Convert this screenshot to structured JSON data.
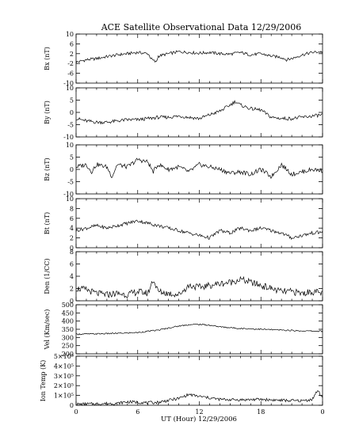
{
  "chart_data": {
    "type": "line",
    "title": "ACE Satellite Observational Data   12/29/2006",
    "xlabel": "UT (Hour)  12/29/2006",
    "x_ticks": [
      "0",
      "6",
      "12",
      "18",
      "0"
    ],
    "xlim": [
      0,
      24
    ],
    "panels": [
      {
        "name": "bx",
        "ylabel": "Bx (nT)",
        "ylim": [
          -10,
          10
        ],
        "yticks": [
          "10",
          "6",
          "2",
          "-2",
          "-6",
          "-10"
        ],
        "ytick_values": [
          10,
          6,
          2,
          -2,
          -6,
          -10
        ],
        "x": [
          0,
          1,
          2,
          3,
          4,
          5,
          6,
          7,
          7.4,
          7.8,
          8,
          9,
          10,
          11,
          12,
          13,
          14,
          15,
          16,
          17,
          18,
          19,
          20,
          20.5,
          21,
          22,
          23,
          24
        ],
        "y": [
          -1.5,
          -0.5,
          0,
          0.8,
          1.5,
          2,
          2.5,
          2,
          -0.5,
          -1.5,
          1,
          2,
          2.8,
          2.5,
          2.2,
          2.5,
          2,
          1.8,
          2.5,
          1.5,
          2,
          1,
          0.5,
          -0.5,
          0,
          1.5,
          2.5,
          2.8
        ]
      },
      {
        "name": "by",
        "ylabel": "By (nT)",
        "ylim": [
          -10,
          10
        ],
        "yticks": [
          "10",
          "5",
          "0",
          "-5",
          "-10"
        ],
        "ytick_values": [
          10,
          5,
          0,
          -5,
          -10
        ],
        "x": [
          0,
          1,
          2,
          3,
          4,
          5,
          6,
          7,
          8,
          9,
          10,
          11,
          12,
          13,
          14,
          15,
          15.5,
          16,
          17,
          18,
          19,
          20,
          21,
          22,
          23,
          24
        ],
        "y": [
          -2.5,
          -3.5,
          -4,
          -4,
          -3.5,
          -3,
          -3,
          -2.5,
          -2,
          -2,
          -1.5,
          -2,
          -2.5,
          -1,
          0.5,
          3,
          4.5,
          3,
          1.5,
          1,
          -2,
          -2.5,
          -2.5,
          -2,
          -1.5,
          -1
        ]
      },
      {
        "name": "bz",
        "ylabel": "Bz (nT)",
        "ylim": [
          -10,
          10
        ],
        "yticks": [
          "10",
          "5",
          "0",
          "-5",
          "-10"
        ],
        "ytick_values": [
          10,
          5,
          0,
          -5,
          -10
        ],
        "x": [
          0,
          1,
          1.5,
          2,
          3,
          3.5,
          4,
          5,
          6,
          7,
          7.5,
          8,
          9,
          10,
          11,
          12,
          13,
          14,
          15,
          16,
          17,
          18,
          19,
          20,
          21,
          22,
          23,
          24
        ],
        "y": [
          1,
          2,
          -1,
          2,
          1,
          -3,
          2,
          1,
          4,
          3,
          -1,
          2,
          0,
          1,
          -1,
          2,
          1,
          0,
          -1.5,
          -1,
          -2,
          0,
          -3,
          2,
          -2,
          -1,
          0,
          -0.5
        ]
      },
      {
        "name": "bt",
        "ylabel": "Bt (nT)",
        "ylim": [
          0,
          10
        ],
        "yticks": [
          "10",
          "8",
          "6",
          "4",
          "2",
          "0"
        ],
        "ytick_values": [
          10,
          8,
          6,
          4,
          2,
          0
        ],
        "x": [
          0,
          1,
          2,
          3,
          4,
          5,
          6,
          7,
          8,
          9,
          10,
          11,
          12,
          13,
          14,
          15,
          16,
          17,
          18,
          19,
          20,
          21,
          22,
          23,
          24
        ],
        "y": [
          3.5,
          4,
          4.5,
          4,
          4.5,
          5,
          5.5,
          5,
          4.5,
          4,
          3.5,
          3,
          2.5,
          2,
          3.5,
          3,
          4,
          3.5,
          4,
          3.5,
          3,
          2,
          2.5,
          3,
          3.2
        ]
      },
      {
        "name": "den",
        "ylabel": "Den (1/CC)",
        "ylim": [
          0,
          8
        ],
        "yticks": [
          "8",
          "6",
          "4",
          "2",
          "0"
        ],
        "ytick_values": [
          8,
          6,
          4,
          2,
          0
        ],
        "x": [
          0,
          1,
          2,
          3,
          4,
          5,
          6,
          7,
          7.5,
          8,
          9,
          10,
          11,
          12,
          13,
          14,
          15,
          16,
          17,
          18,
          19,
          20,
          21,
          22,
          23,
          24
        ],
        "y": [
          2,
          1.8,
          1.2,
          1,
          1.2,
          1,
          1.5,
          1.2,
          3.5,
          1.5,
          1.2,
          1,
          2.5,
          2.2,
          2.5,
          2.8,
          3,
          3.5,
          3,
          2.5,
          2,
          1.5,
          1.5,
          1.2,
          1.5,
          1.2
        ]
      },
      {
        "name": "vel",
        "ylabel": "Vel (Km/sec)",
        "ylim": [
          200,
          500
        ],
        "yticks": [
          "500",
          "450",
          "400",
          "350",
          "300",
          "250",
          "200"
        ],
        "ytick_values": [
          500,
          450,
          400,
          350,
          300,
          250,
          200
        ],
        "x": [
          0,
          2,
          4,
          6,
          8,
          10,
          11,
          12,
          13,
          14,
          16,
          18,
          20,
          22,
          24
        ],
        "y": [
          320,
          322,
          325,
          330,
          345,
          370,
          378,
          380,
          375,
          365,
          355,
          350,
          345,
          340,
          338
        ]
      },
      {
        "name": "temp",
        "ylabel": "Ion Temp (K)",
        "ylim": [
          0,
          500000
        ],
        "yticks": [
          "5×10⁵",
          "4×10⁵",
          "3×10⁵",
          "2×10⁵",
          "1×10⁵",
          "0"
        ],
        "ytick_values": [
          500000,
          400000,
          300000,
          200000,
          100000,
          0
        ],
        "x": [
          0,
          2,
          4,
          5,
          6,
          7,
          8,
          10,
          11,
          12,
          13,
          14,
          16,
          18,
          20,
          22,
          23,
          23.5,
          24
        ],
        "y": [
          10000,
          15000,
          20000,
          35000,
          30000,
          25000,
          30000,
          70000,
          110000,
          90000,
          75000,
          60000,
          55000,
          60000,
          50000,
          45000,
          60000,
          150000,
          80000
        ]
      }
    ]
  }
}
